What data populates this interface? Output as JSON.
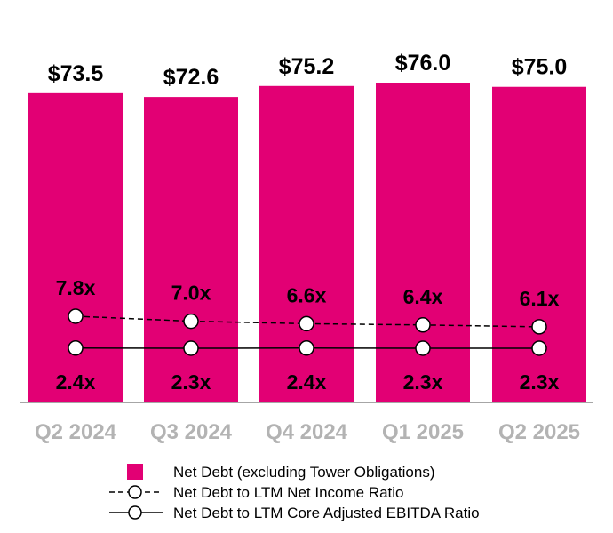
{
  "chart_data": {
    "type": "bar",
    "categories": [
      "Q2 2024",
      "Q3 2024",
      "Q4 2024",
      "Q1 2025",
      "Q2 2025"
    ],
    "series": [
      {
        "name": "Net Debt (excluding Tower Obligations)",
        "type": "bar",
        "values": [
          73.5,
          72.6,
          75.2,
          76.0,
          75.0
        ],
        "labels": [
          "$73.5",
          "$72.6",
          "$75.2",
          "$76.0",
          "$75.0"
        ],
        "color": "#e20074"
      },
      {
        "name": "Net Debt to LTM Net Income Ratio",
        "type": "line",
        "line_style": "dashed",
        "marker": "open-circle",
        "values": [
          7.8,
          7.0,
          6.6,
          6.4,
          6.1
        ],
        "labels": [
          "7.8x",
          "7.0x",
          "6.6x",
          "6.4x",
          "6.1x"
        ]
      },
      {
        "name": "Net Debt to LTM Core Adjusted EBITDA Ratio",
        "type": "line",
        "line_style": "solid",
        "marker": "open-circle",
        "values": [
          2.4,
          2.3,
          2.4,
          2.3,
          2.3
        ],
        "labels": [
          "2.4x",
          "2.3x",
          "2.4x",
          "2.3x",
          "2.3x"
        ]
      }
    ],
    "bar_axis_range": [
      0,
      76
    ],
    "title": "",
    "xlabel": "",
    "ylabel": "",
    "grid": false,
    "legend_position": "bottom-center"
  },
  "colors": {
    "bar": "#e20074",
    "axis": "#a6a6a6",
    "category_text": "#b3b3b3",
    "line": "#000000"
  }
}
